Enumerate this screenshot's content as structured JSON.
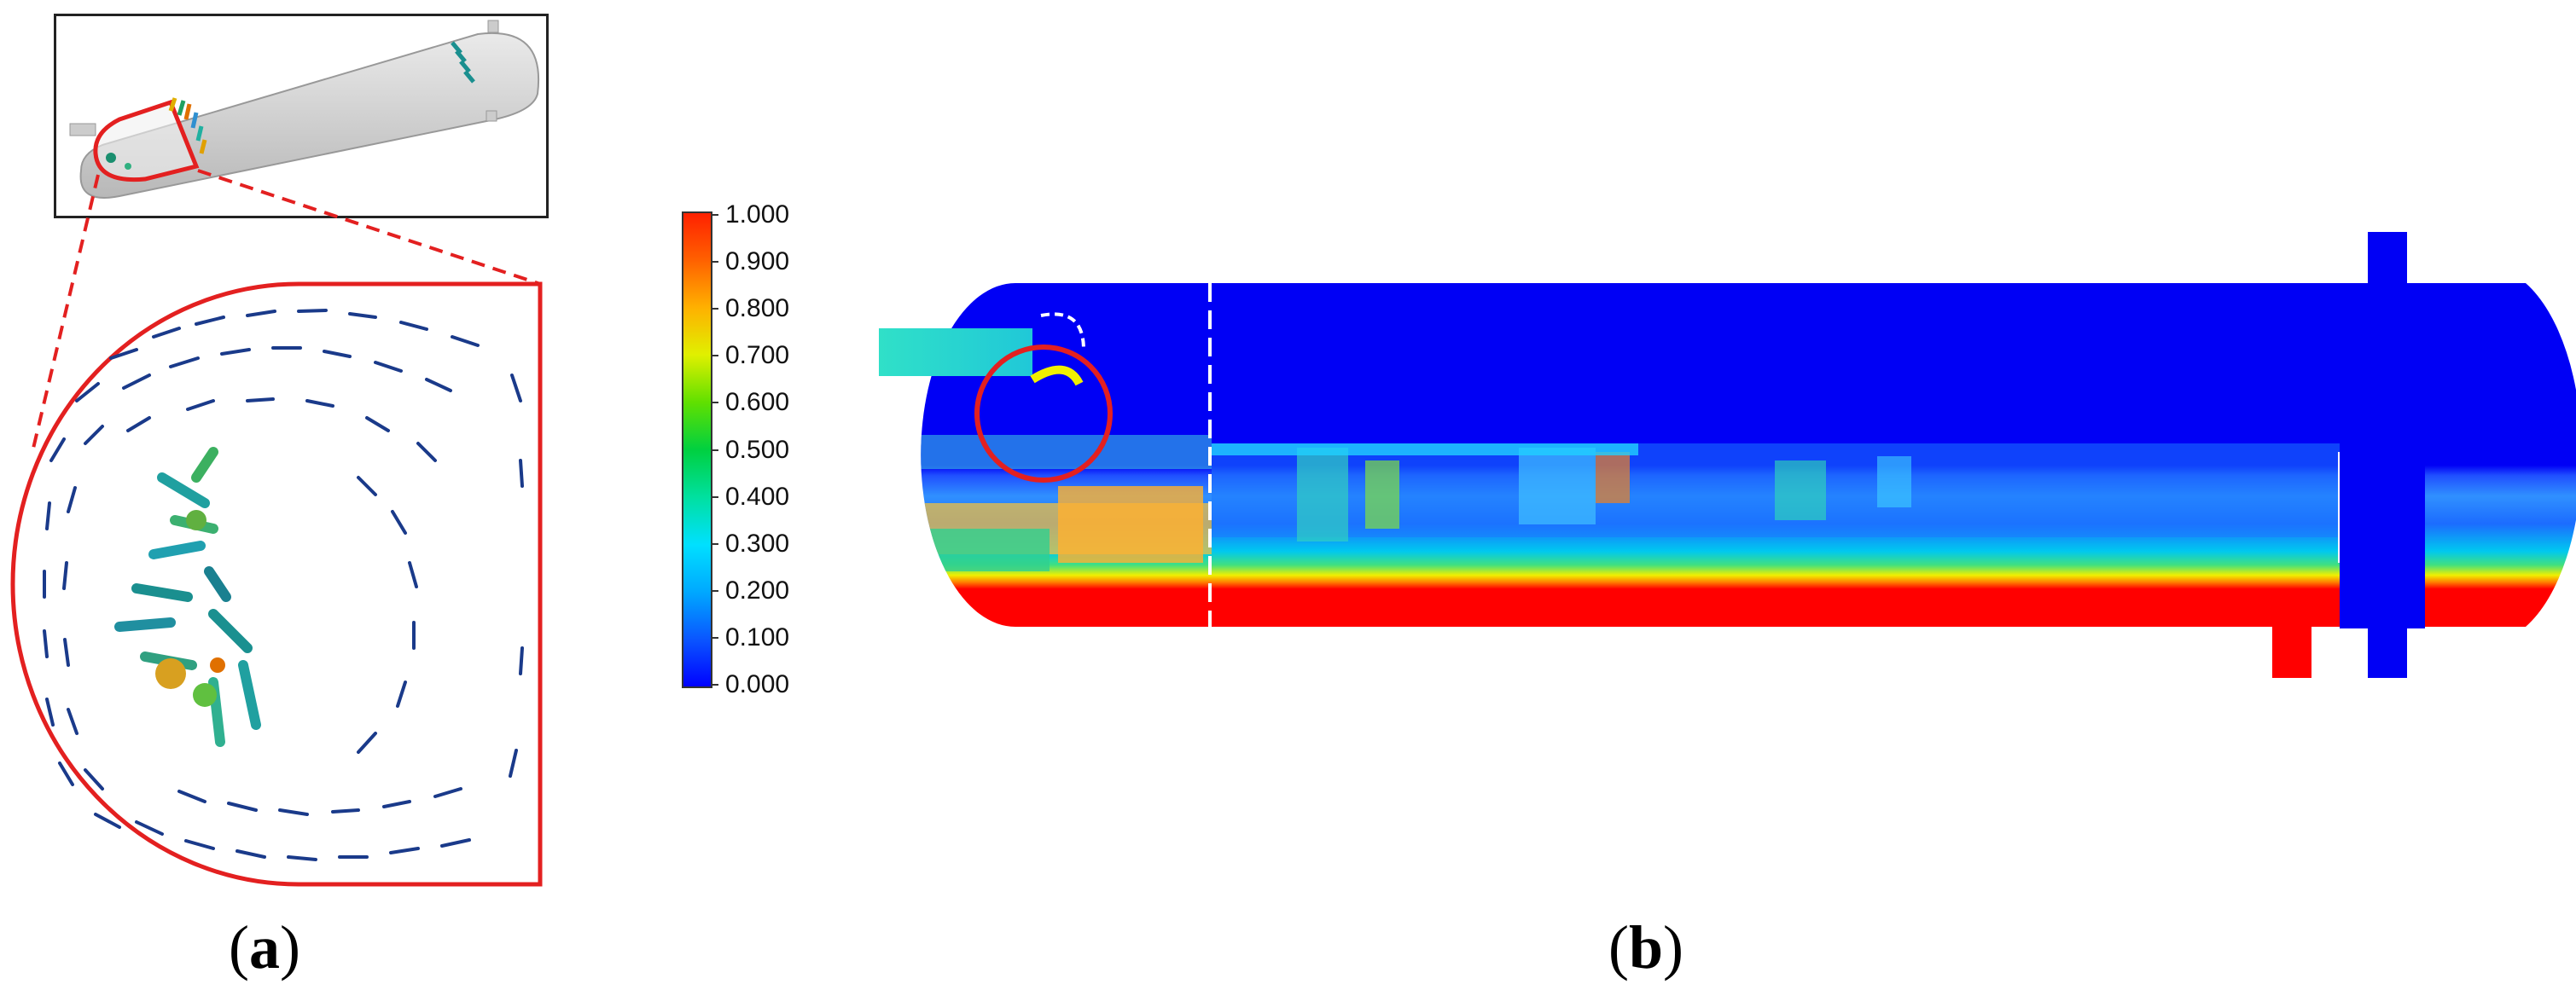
{
  "panel_a": {
    "caption_open": "(",
    "caption_letter": "a",
    "caption_close": ")"
  },
  "panel_b": {
    "caption_open": "(",
    "caption_letter": "b",
    "caption_close": ")"
  },
  "colorbar": {
    "ticks": [
      "1.000",
      "0.900",
      "0.800",
      "0.700",
      "0.600",
      "0.500",
      "0.400",
      "0.300",
      "0.200",
      "0.100",
      "0.000"
    ],
    "colors": [
      "#0000ff",
      "#0a55ff",
      "#00a8ff",
      "#00e0ff",
      "#00e0a0",
      "#00d040",
      "#00e000",
      "#80e000",
      "#f0f000",
      "#ffb000",
      "#ff6000",
      "#ff0000"
    ]
  },
  "colors": {
    "highlight": "#e32020",
    "vessel_water": "#0000f5",
    "vessel_bottom": "#ff0000"
  }
}
